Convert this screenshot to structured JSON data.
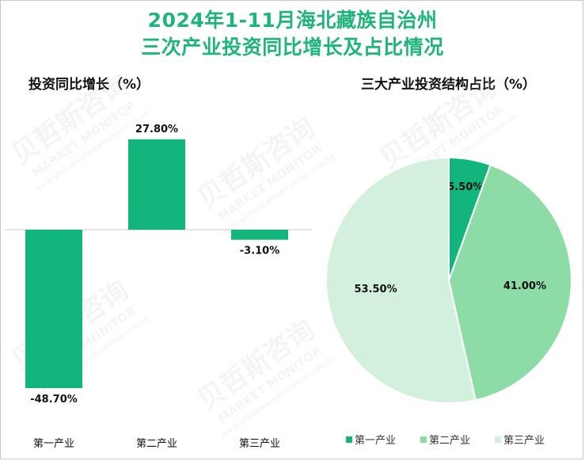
{
  "title_line1": "2024年1-11月海北藏族自治州",
  "title_line2": "三次产业投资同比增长及占比情况",
  "chart_data": [
    {
      "type": "bar",
      "title": "投资同比增长（%）",
      "categories": [
        "第一产业",
        "第二产业",
        "第三产业"
      ],
      "values": [
        -48.7,
        27.8,
        -3.1
      ],
      "value_labels": [
        "-48.70%",
        "27.80%",
        "-3.10%"
      ],
      "color": "#12b57c",
      "ylim": [
        -55,
        30
      ]
    },
    {
      "type": "pie",
      "title": "三大产业投资结构占比（%）",
      "categories": [
        "第一产业",
        "第二产业",
        "第三产业"
      ],
      "values": [
        5.5,
        41.0,
        53.5
      ],
      "value_labels": [
        "5.50%",
        "41.00%",
        "53.50%"
      ],
      "colors": [
        "#12b57c",
        "#8ddca6",
        "#d2f0dc"
      ],
      "legend_position": "bottom"
    }
  ],
  "watermark": {
    "brand": "贝哲斯咨询",
    "brand_en": "MARKET MONITOR",
    "site": "www.globalmarketmonitor.com.cn"
  }
}
